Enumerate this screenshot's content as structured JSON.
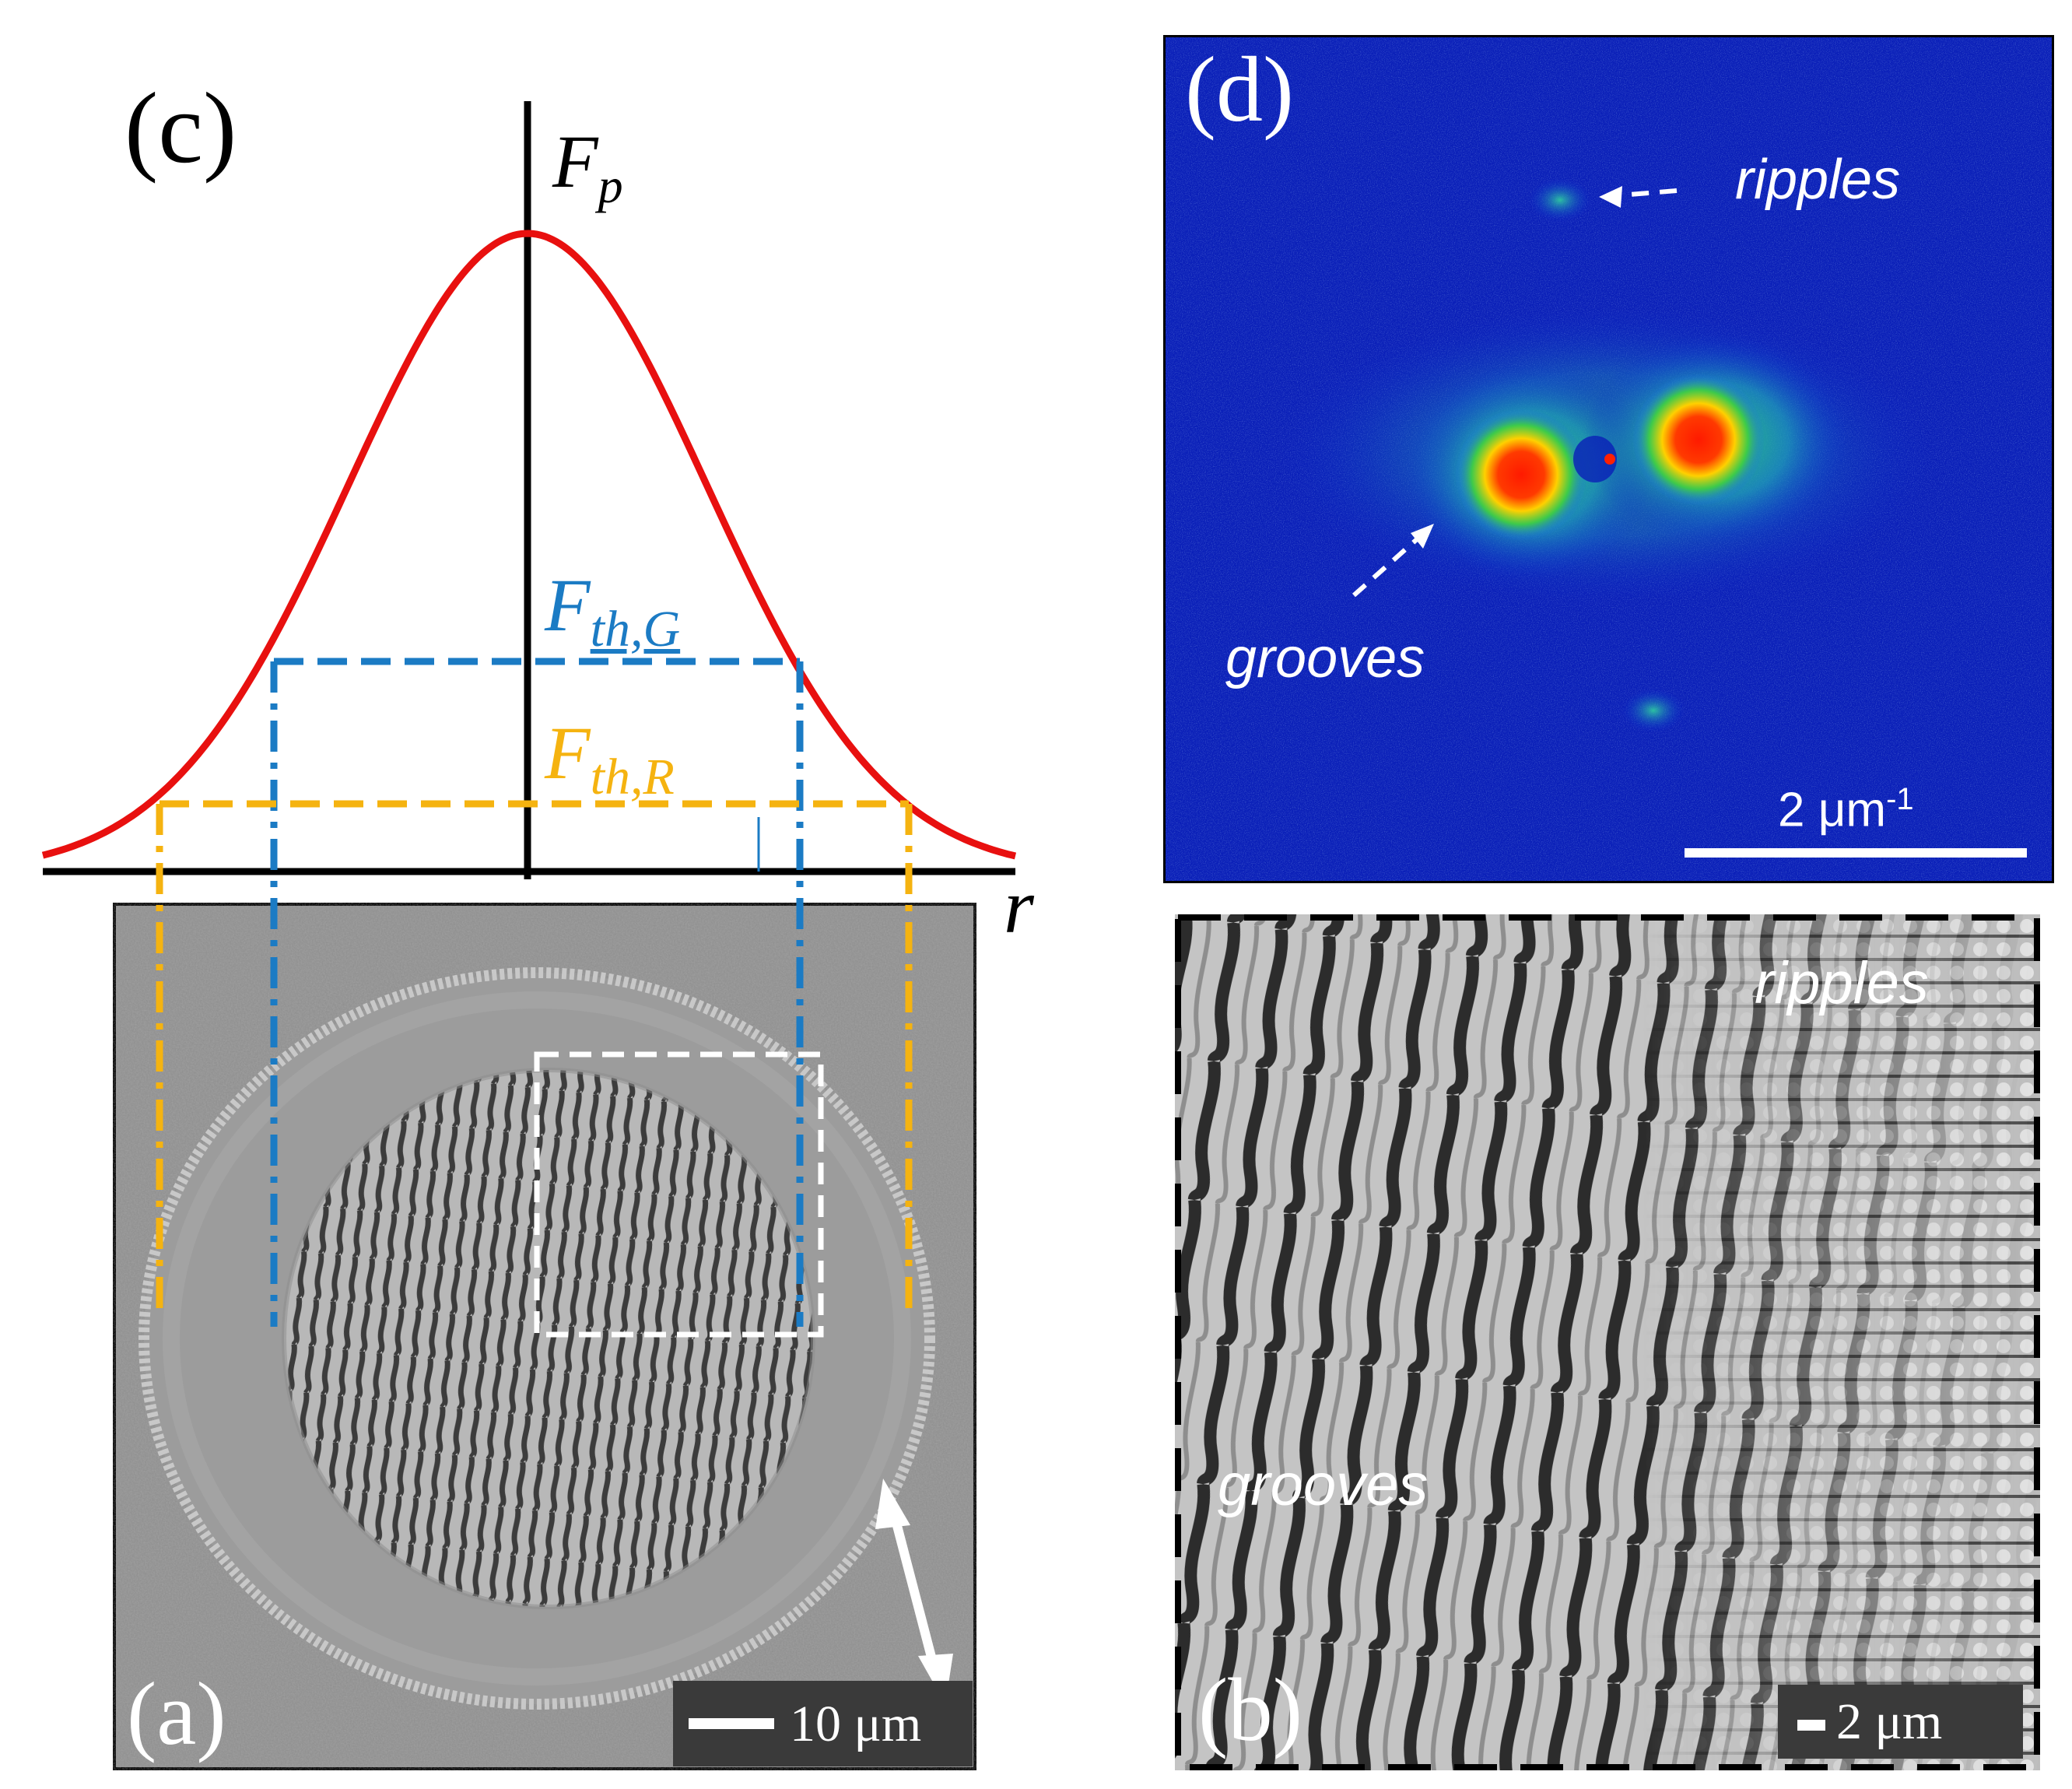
{
  "figure": {
    "panel_c": {
      "label": "(c)",
      "peak_label": "F",
      "peak_sub": "p",
      "axis_label": "r",
      "threshold_grooves_main": "F",
      "threshold_grooves_sub": "th,G",
      "threshold_ripples_main": "F",
      "threshold_ripples_sub": "th,R",
      "colors": {
        "curve": "#e8100f",
        "grooves": "#1b7bc4",
        "ripples": "#f5b310"
      }
    },
    "panel_d": {
      "label": "(d)",
      "annotation_ripples": "ripples",
      "annotation_grooves": "grooves",
      "scalebar_label": "2 μm",
      "scalebar_exp": "-1"
    },
    "panel_a": {
      "label": "(a)",
      "scalebar_label": "10 μm"
    },
    "panel_b": {
      "label": "(b)",
      "annotation_ripples": "ripples",
      "annotation_grooves": "grooves",
      "scalebar_label": "2 μm"
    }
  }
}
